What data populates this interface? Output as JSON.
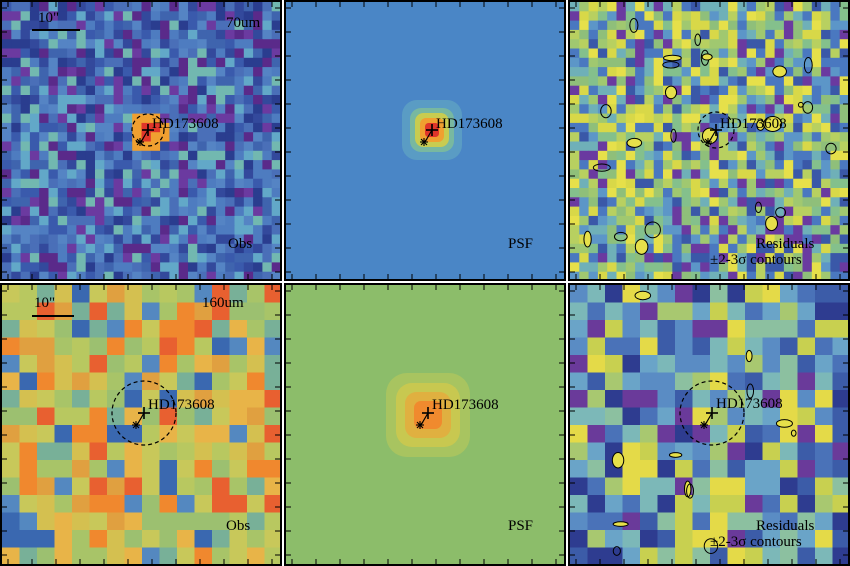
{
  "figure": {
    "object_name": "HD173608",
    "rows": [
      {
        "band": "70um",
        "scale_label": "10\"",
        "panels": [
          {
            "kind": "obs",
            "label": "Obs",
            "colormap": "noise_blue"
          },
          {
            "kind": "psf",
            "label": "PSF",
            "colormap": "psf_blue"
          },
          {
            "kind": "resid",
            "label": "Residuals",
            "sublabel": "±2-3σ contours",
            "colormap": "resid_mixed"
          }
        ]
      },
      {
        "band": "160um",
        "scale_label": "10\"",
        "panels": [
          {
            "kind": "obs",
            "label": "Obs",
            "colormap": "noise_warm"
          },
          {
            "kind": "psf",
            "label": "PSF",
            "colormap": "psf_green"
          },
          {
            "kind": "resid",
            "label": "Residuals",
            "sublabel": "±2-3σ contours",
            "colormap": "resid_blue"
          }
        ]
      }
    ],
    "colors": {
      "frame": "#000000",
      "psf_bg_blue": "#4a86c6",
      "psf_bg_green": "#8cbd6a",
      "peak_red": "#e0362a",
      "peak_orange": "#f0a030"
    }
  }
}
